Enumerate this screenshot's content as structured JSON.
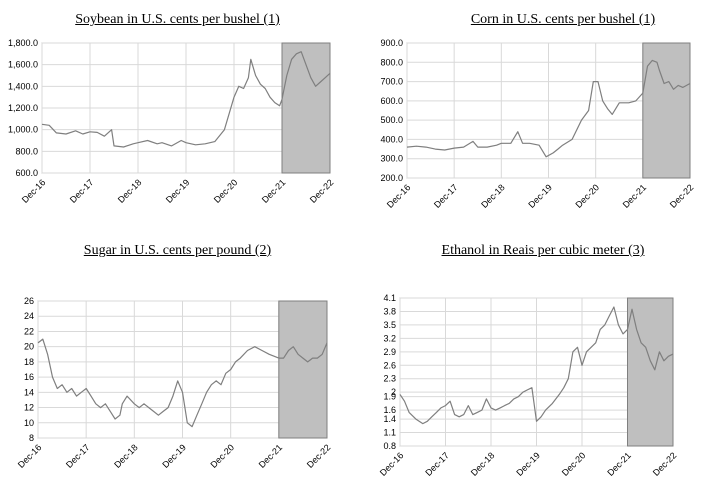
{
  "chart_data": [
    {
      "type": "line",
      "title": "Soybean in U.S. cents per bushel (1)",
      "x_ticks": [
        "Dec-16",
        "Dec-17",
        "Dec-18",
        "Dec-19",
        "Dec-20",
        "Dec-21",
        "Dec-22"
      ],
      "y_ticks": [
        "600.0",
        "800.0",
        "1,000.0",
        "1,200.0",
        "1,400.0",
        "1,600.0",
        "1,800.0"
      ],
      "ylim": [
        600,
        1800
      ],
      "grid": true,
      "shaded_period": [
        "Dec-21",
        "Dec-22"
      ],
      "series": [
        {
          "values": [
            [
              0,
              1050
            ],
            [
              0.15,
              1040
            ],
            [
              0.3,
              970
            ],
            [
              0.5,
              960
            ],
            [
              0.7,
              990
            ],
            [
              0.85,
              960
            ],
            [
              1,
              980
            ],
            [
              1.15,
              975
            ],
            [
              1.3,
              940
            ],
            [
              1.45,
              1000
            ],
            [
              1.5,
              850
            ],
            [
              1.7,
              840
            ],
            [
              1.9,
              870
            ],
            [
              2,
              880
            ],
            [
              2.2,
              900
            ],
            [
              2.4,
              870
            ],
            [
              2.5,
              880
            ],
            [
              2.7,
              850
            ],
            [
              2.9,
              900
            ],
            [
              3,
              880
            ],
            [
              3.2,
              860
            ],
            [
              3.4,
              870
            ],
            [
              3.6,
              890
            ],
            [
              3.8,
              1000
            ],
            [
              4,
              1300
            ],
            [
              4.1,
              1400
            ],
            [
              4.2,
              1380
            ],
            [
              4.3,
              1480
            ],
            [
              4.35,
              1650
            ],
            [
              4.45,
              1500
            ],
            [
              4.55,
              1420
            ],
            [
              4.65,
              1380
            ],
            [
              4.75,
              1300
            ],
            [
              4.85,
              1250
            ],
            [
              4.95,
              1220
            ],
            [
              5,
              1280
            ],
            [
              5.1,
              1500
            ],
            [
              5.2,
              1650
            ],
            [
              5.3,
              1700
            ],
            [
              5.4,
              1720
            ],
            [
              5.5,
              1600
            ],
            [
              5.6,
              1480
            ],
            [
              5.7,
              1400
            ],
            [
              5.8,
              1440
            ],
            [
              5.9,
              1480
            ],
            [
              6,
              1520
            ]
          ]
        }
      ]
    },
    {
      "type": "line",
      "title": "Corn in U.S. cents per bushel (1)",
      "x_ticks": [
        "Dec-16",
        "Dec-17",
        "Dec-18",
        "Dec-19",
        "Dec-20",
        "Dec-21",
        "Dec-22"
      ],
      "y_ticks": [
        "200.0",
        "300.0",
        "400.0",
        "500.0",
        "600.0",
        "700.0",
        "800.0",
        "900.0"
      ],
      "ylim": [
        200,
        900
      ],
      "grid": true,
      "shaded_period": [
        "Dec-21",
        "Dec-22"
      ],
      "series": [
        {
          "values": [
            [
              0,
              360
            ],
            [
              0.2,
              365
            ],
            [
              0.4,
              360
            ],
            [
              0.6,
              350
            ],
            [
              0.8,
              345
            ],
            [
              1,
              355
            ],
            [
              1.2,
              360
            ],
            [
              1.4,
              390
            ],
            [
              1.5,
              360
            ],
            [
              1.7,
              360
            ],
            [
              1.9,
              370
            ],
            [
              2,
              380
            ],
            [
              2.2,
              380
            ],
            [
              2.35,
              440
            ],
            [
              2.45,
              380
            ],
            [
              2.6,
              380
            ],
            [
              2.8,
              370
            ],
            [
              2.95,
              310
            ],
            [
              3.1,
              330
            ],
            [
              3.2,
              350
            ],
            [
              3.3,
              370
            ],
            [
              3.5,
              400
            ],
            [
              3.7,
              500
            ],
            [
              3.85,
              550
            ],
            [
              3.95,
              700
            ],
            [
              4.05,
              700
            ],
            [
              4.15,
              600
            ],
            [
              4.25,
              560
            ],
            [
              4.35,
              530
            ],
            [
              4.5,
              590
            ],
            [
              4.7,
              590
            ],
            [
              4.85,
              600
            ],
            [
              5,
              640
            ],
            [
              5.1,
              780
            ],
            [
              5.2,
              810
            ],
            [
              5.3,
              800
            ],
            [
              5.35,
              760
            ],
            [
              5.45,
              690
            ],
            [
              5.55,
              700
            ],
            [
              5.65,
              660
            ],
            [
              5.75,
              680
            ],
            [
              5.85,
              670
            ],
            [
              6,
              690
            ]
          ]
        }
      ]
    },
    {
      "type": "line",
      "title": "Sugar in U.S. cents per pound (2)",
      "x_ticks": [
        "Dec-16",
        "Dec-17",
        "Dec-18",
        "Dec-19",
        "Dec-20",
        "Dec-21",
        "Dec-22"
      ],
      "y_ticks": [
        "8",
        "10",
        "12",
        "14",
        "16",
        "18",
        "20",
        "22",
        "24",
        "26"
      ],
      "ylim": [
        8,
        26
      ],
      "grid": true,
      "shaded_period": [
        "Dec-21",
        "Dec-22"
      ],
      "series": [
        {
          "values": [
            [
              0,
              20.5
            ],
            [
              0.1,
              21
            ],
            [
              0.2,
              19
            ],
            [
              0.3,
              16
            ],
            [
              0.4,
              14.5
            ],
            [
              0.5,
              15
            ],
            [
              0.6,
              14
            ],
            [
              0.7,
              14.5
            ],
            [
              0.8,
              13.5
            ],
            [
              0.9,
              14
            ],
            [
              1,
              14.5
            ],
            [
              1.1,
              13.5
            ],
            [
              1.2,
              12.5
            ],
            [
              1.3,
              12
            ],
            [
              1.4,
              12.5
            ],
            [
              1.5,
              11.5
            ],
            [
              1.6,
              10.5
            ],
            [
              1.7,
              11
            ],
            [
              1.75,
              12.5
            ],
            [
              1.85,
              13.5
            ],
            [
              2,
              12.5
            ],
            [
              2.1,
              12
            ],
            [
              2.2,
              12.5
            ],
            [
              2.3,
              12
            ],
            [
              2.4,
              11.5
            ],
            [
              2.5,
              11
            ],
            [
              2.6,
              11.5
            ],
            [
              2.7,
              12
            ],
            [
              2.8,
              13.5
            ],
            [
              2.9,
              15.5
            ],
            [
              3,
              14
            ],
            [
              3.1,
              10
            ],
            [
              3.2,
              9.5
            ],
            [
              3.3,
              11
            ],
            [
              3.4,
              12.5
            ],
            [
              3.5,
              14
            ],
            [
              3.6,
              15
            ],
            [
              3.7,
              15.5
            ],
            [
              3.8,
              15
            ],
            [
              3.9,
              16.5
            ],
            [
              4,
              17
            ],
            [
              4.1,
              18
            ],
            [
              4.2,
              18.5
            ],
            [
              4.35,
              19.5
            ],
            [
              4.5,
              20
            ],
            [
              4.65,
              19.5
            ],
            [
              4.8,
              19
            ],
            [
              5,
              18.5
            ],
            [
              5.1,
              18.5
            ],
            [
              5.2,
              19.5
            ],
            [
              5.3,
              20
            ],
            [
              5.4,
              19
            ],
            [
              5.5,
              18.5
            ],
            [
              5.6,
              18
            ],
            [
              5.7,
              18.5
            ],
            [
              5.8,
              18.5
            ],
            [
              5.9,
              19
            ],
            [
              6,
              20.5
            ]
          ]
        }
      ]
    },
    {
      "type": "line",
      "title": "Ethanol in Reais per cubic meter (3)",
      "x_ticks": [
        "Dec-16",
        "Dec-17",
        "Dec-18",
        "Dec-19",
        "Dec-20",
        "Dec-21",
        "Dec-22"
      ],
      "y_ticks": [
        "0.8",
        "1.1",
        "1.4",
        "1.6",
        "1.9",
        "2",
        "2.3",
        "2.6",
        "2.9",
        "3.2",
        "3.5",
        "3.8",
        "4.1"
      ],
      "ylim": [
        0.8,
        4.1
      ],
      "grid": true,
      "shaded_period": [
        "Dec-21",
        "Dec-22"
      ],
      "series": [
        {
          "values": [
            [
              0,
              1.95
            ],
            [
              0.1,
              1.8
            ],
            [
              0.2,
              1.55
            ],
            [
              0.35,
              1.4
            ],
            [
              0.5,
              1.3
            ],
            [
              0.6,
              1.35
            ],
            [
              0.7,
              1.45
            ],
            [
              0.8,
              1.55
            ],
            [
              0.9,
              1.65
            ],
            [
              1,
              1.7
            ],
            [
              1.1,
              1.8
            ],
            [
              1.2,
              1.5
            ],
            [
              1.3,
              1.45
            ],
            [
              1.4,
              1.5
            ],
            [
              1.5,
              1.7
            ],
            [
              1.6,
              1.5
            ],
            [
              1.7,
              1.55
            ],
            [
              1.8,
              1.6
            ],
            [
              1.9,
              1.85
            ],
            [
              2,
              1.65
            ],
            [
              2.1,
              1.6
            ],
            [
              2.2,
              1.65
            ],
            [
              2.3,
              1.7
            ],
            [
              2.4,
              1.75
            ],
            [
              2.5,
              1.85
            ],
            [
              2.6,
              1.9
            ],
            [
              2.7,
              2
            ],
            [
              2.8,
              2.05
            ],
            [
              2.9,
              2.1
            ],
            [
              3,
              1.35
            ],
            [
              3.1,
              1.45
            ],
            [
              3.2,
              1.6
            ],
            [
              3.35,
              1.75
            ],
            [
              3.5,
              1.95
            ],
            [
              3.6,
              2.1
            ],
            [
              3.7,
              2.3
            ],
            [
              3.8,
              2.9
            ],
            [
              3.9,
              3
            ],
            [
              4,
              2.6
            ],
            [
              4.1,
              2.9
            ],
            [
              4.2,
              3
            ],
            [
              4.3,
              3.1
            ],
            [
              4.4,
              3.4
            ],
            [
              4.5,
              3.5
            ],
            [
              4.6,
              3.7
            ],
            [
              4.7,
              3.9
            ],
            [
              4.8,
              3.5
            ],
            [
              4.9,
              3.3
            ],
            [
              5,
              3.4
            ],
            [
              5.1,
              3.85
            ],
            [
              5.2,
              3.4
            ],
            [
              5.3,
              3.1
            ],
            [
              5.4,
              3
            ],
            [
              5.5,
              2.7
            ],
            [
              5.6,
              2.5
            ],
            [
              5.7,
              2.9
            ],
            [
              5.8,
              2.7
            ],
            [
              5.9,
              2.8
            ],
            [
              6,
              2.85
            ]
          ]
        }
      ]
    }
  ]
}
